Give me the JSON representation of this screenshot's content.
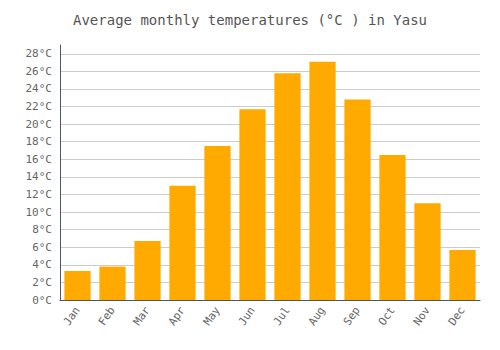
{
  "chart_data": {
    "type": "bar",
    "title": "Average monthly temperatures (°C ) in Yasu",
    "categories": [
      "Jan",
      "Feb",
      "Mar",
      "Apr",
      "May",
      "Jun",
      "Jul",
      "Aug",
      "Sep",
      "Oct",
      "Nov",
      "Dec"
    ],
    "values": [
      3.3,
      3.8,
      6.7,
      13.0,
      17.5,
      21.7,
      25.8,
      27.1,
      22.8,
      16.5,
      11.0,
      5.7
    ],
    "color": "#FFAA00",
    "ylim": [
      0,
      29
    ],
    "yticks": [
      {
        "value": 0,
        "label": "0°C"
      },
      {
        "value": 2,
        "label": "2°C"
      },
      {
        "value": 4,
        "label": "4°C"
      },
      {
        "value": 6,
        "label": "6°C"
      },
      {
        "value": 8,
        "label": "8°C"
      },
      {
        "value": 10,
        "label": "10°C"
      },
      {
        "value": 12,
        "label": "12°C"
      },
      {
        "value": 14,
        "label": "14°C"
      },
      {
        "value": 16,
        "label": "16°C"
      },
      {
        "value": 18,
        "label": "18°C"
      },
      {
        "value": 20,
        "label": "20°C"
      },
      {
        "value": 22,
        "label": "22°C"
      },
      {
        "value": 24,
        "label": "24°C"
      },
      {
        "value": 26,
        "label": "26°C"
      },
      {
        "value": 28,
        "label": "28°C"
      }
    ],
    "grid": true
  }
}
